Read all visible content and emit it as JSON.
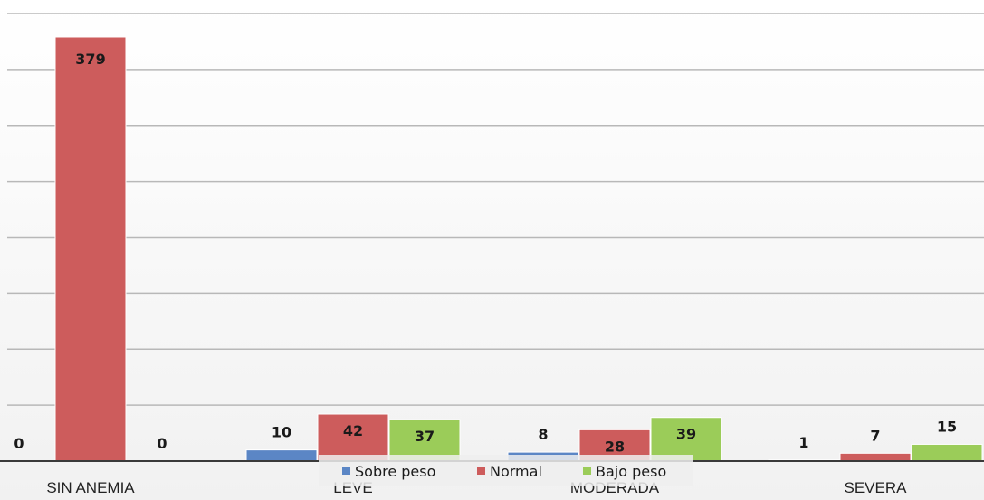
{
  "chart_data": {
    "type": "bar",
    "title": "",
    "xlabel": "",
    "ylabel": "",
    "ylim": [
      0,
      400
    ],
    "gridlines": true,
    "legend_position": "bottom-center",
    "categories": [
      "SIN ANEMIA",
      "LEVE",
      "MODERADA",
      "SEVERA"
    ],
    "series": [
      {
        "name": "Sobre peso",
        "color": "#5b86c5",
        "values": [
          0,
          10,
          8,
          1
        ]
      },
      {
        "name": "Normal",
        "color": "#cd5c5c",
        "values": [
          379,
          42,
          28,
          7
        ]
      },
      {
        "name": "Bajo peso",
        "color": "#9bcc59",
        "values": [
          0,
          37,
          39,
          15
        ]
      }
    ]
  }
}
